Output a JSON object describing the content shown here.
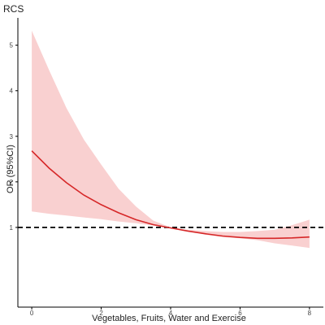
{
  "chart_data": {
    "type": "line",
    "title": "RCS",
    "xlabel": "Vegetables, Fruits, Water and Exercise",
    "ylabel": "OR (95%CI)",
    "xlim": [
      -0.4,
      8.4
    ],
    "ylim": [
      -0.75,
      5.6
    ],
    "xticks": [
      0,
      2,
      4,
      6,
      8
    ],
    "yticks": [
      1,
      2,
      3,
      4,
      5
    ],
    "grid": false,
    "reference_line": {
      "y": 1,
      "style": "dashed",
      "color": "#000000"
    },
    "series": [
      {
        "type": "line",
        "color": "#d62728",
        "x": [
          0,
          0.5,
          1,
          1.5,
          2,
          2.5,
          3,
          3.5,
          4,
          4.5,
          5,
          5.5,
          6,
          6.5,
          7,
          7.5,
          8
        ],
        "y": [
          2.68,
          2.3,
          1.98,
          1.71,
          1.5,
          1.32,
          1.17,
          1.06,
          0.99,
          0.92,
          0.86,
          0.81,
          0.78,
          0.76,
          0.76,
          0.77,
          0.79
        ]
      },
      {
        "type": "band",
        "color": "#f8c8c8",
        "x": [
          0,
          0.5,
          1,
          1.5,
          2,
          2.5,
          3,
          3.5,
          4,
          4.5,
          5,
          5.5,
          6,
          6.5,
          7,
          7.5,
          8
        ],
        "lower": [
          1.35,
          1.3,
          1.26,
          1.22,
          1.18,
          1.13,
          1.09,
          1.04,
          0.99,
          0.92,
          0.84,
          0.79,
          0.76,
          0.72,
          0.65,
          0.6,
          0.55
        ],
        "upper": [
          5.32,
          4.45,
          3.62,
          2.93,
          2.38,
          1.85,
          1.46,
          1.15,
          1.0,
          0.95,
          0.92,
          0.9,
          0.9,
          0.92,
          0.95,
          1.05,
          1.17
        ]
      }
    ]
  }
}
